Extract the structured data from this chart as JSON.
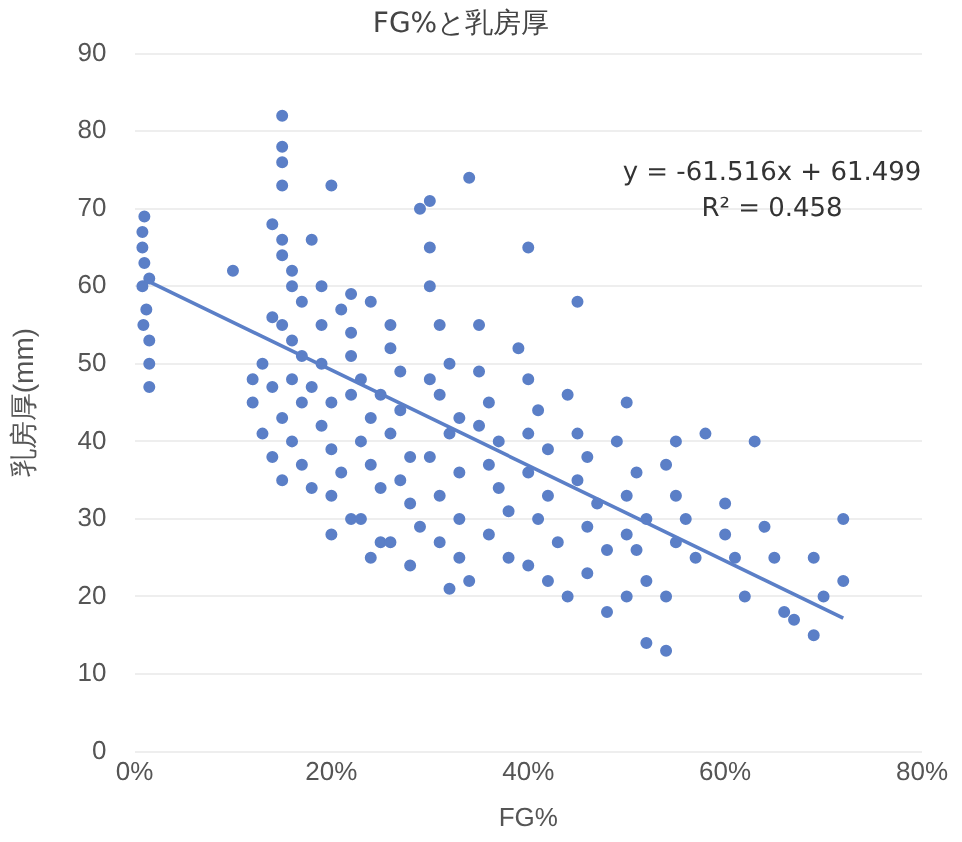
{
  "chart_data": {
    "type": "scatter",
    "title": "FG%と乳房厚",
    "xlabel": "FG%",
    "ylabel": "乳房厚(mm)",
    "annotations": [
      "y = -61.516x + 61.499",
      "R² = 0.458"
    ],
    "xlim": [
      0,
      80
    ],
    "xticks": [
      {
        "value": 0,
        "label": "0%"
      },
      {
        "value": 20,
        "label": "20%"
      },
      {
        "value": 40,
        "label": "40%"
      },
      {
        "value": 60,
        "label": "60%"
      },
      {
        "value": 80,
        "label": "80%"
      }
    ],
    "ylim": [
      0,
      90
    ],
    "yticks": [
      0,
      10,
      20,
      30,
      40,
      50,
      60,
      70,
      80,
      90
    ],
    "grid": "y",
    "legend": false,
    "series": [
      {
        "color": "#5b7fc7",
        "marker": "circle",
        "x": [
          1,
          0.8,
          0.8,
          1,
          1.5,
          0.8,
          1.2,
          0.9,
          1.5,
          1.5,
          1.5,
          10,
          12,
          12,
          13,
          13,
          14,
          14,
          14,
          15,
          15,
          15,
          15,
          14,
          15,
          15,
          16,
          16,
          17,
          15,
          16,
          17,
          16,
          17,
          15,
          16,
          17,
          15,
          18,
          18,
          19,
          19,
          19,
          18,
          20,
          19,
          20,
          21,
          20,
          22,
          20,
          21,
          22,
          22,
          23,
          22,
          24,
          23,
          24,
          25,
          23,
          25,
          20,
          22,
          24,
          26,
          26,
          27,
          25,
          27,
          26,
          28,
          27,
          28,
          29,
          26,
          24,
          28,
          30,
          29,
          30,
          30,
          31,
          32,
          30,
          31,
          33,
          32,
          30,
          33,
          31,
          33,
          31,
          33,
          34,
          32,
          34,
          35,
          35,
          36,
          35,
          37,
          36,
          37,
          38,
          36,
          38,
          40,
          39,
          40,
          41,
          40,
          42,
          40,
          42,
          41,
          43,
          40,
          42,
          44,
          45,
          44,
          45,
          46,
          45,
          47,
          46,
          48,
          46,
          48,
          50,
          49,
          51,
          50,
          52,
          50,
          51,
          52,
          50,
          52,
          54,
          55,
          54,
          55,
          56,
          55,
          57,
          54,
          58,
          60,
          60,
          61,
          62,
          63,
          64,
          65,
          66,
          67,
          69,
          69,
          70,
          72,
          72
        ],
        "values": [
          69,
          67,
          65,
          63,
          61,
          60,
          57,
          55,
          53,
          50,
          47,
          62,
          48,
          45,
          50,
          41,
          56,
          47,
          38,
          82,
          78,
          76,
          73,
          68,
          66,
          64,
          62,
          60,
          58,
          55,
          53,
          51,
          48,
          45,
          43,
          40,
          37,
          35,
          34,
          66,
          60,
          55,
          50,
          47,
          45,
          42,
          39,
          36,
          33,
          30,
          28,
          57,
          54,
          51,
          48,
          46,
          43,
          40,
          37,
          34,
          30,
          27,
          73,
          59,
          58,
          55,
          52,
          49,
          46,
          44,
          41,
          38,
          35,
          32,
          29,
          27,
          25,
          24,
          71,
          70,
          65,
          60,
          55,
          50,
          48,
          46,
          43,
          41,
          38,
          36,
          33,
          30,
          27,
          25,
          22,
          21,
          74,
          55,
          49,
          45,
          42,
          40,
          37,
          34,
          31,
          28,
          25,
          65,
          52,
          48,
          44,
          41,
          39,
          36,
          33,
          30,
          27,
          24,
          22,
          20,
          58,
          46,
          41,
          38,
          35,
          32,
          29,
          26,
          23,
          18,
          45,
          40,
          36,
          33,
          30,
          28,
          26,
          22,
          20,
          14,
          13,
          40,
          37,
          33,
          30,
          27,
          25,
          20,
          41,
          32,
          28,
          25,
          20,
          40,
          29,
          25,
          18,
          17,
          25,
          15,
          20,
          30,
          22
        ]
      },
      {
        "type": "line",
        "color": "#5b7fc7",
        "x": [
          1,
          72
        ],
        "values": [
          60.9,
          17.2
        ]
      }
    ]
  }
}
